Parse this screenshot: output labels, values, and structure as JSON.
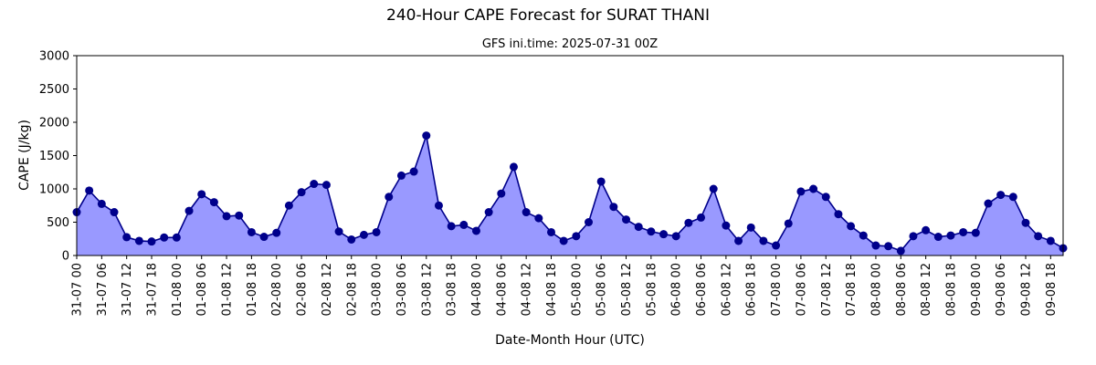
{
  "chart_data": {
    "type": "area",
    "title": "240-Hour CAPE Forecast for SURAT THANI",
    "subtitle": "GFS ini.time: 2025-07-31 00Z",
    "xlabel": "Date-Month Hour (UTC)",
    "ylabel": "CAPE (J/kg)",
    "ylim": [
      0,
      3000
    ],
    "yticks": [
      0,
      500,
      1000,
      1500,
      2000,
      2500,
      3000
    ],
    "grid": false,
    "colors": {
      "line": "#00008b",
      "fill": "#9999ff",
      "marker": "#00008b"
    },
    "x_labels": [
      "31-07 00",
      "31-07 06",
      "31-07 12",
      "31-07 18",
      "01-08 00",
      "01-08 06",
      "01-08 12",
      "01-08 18",
      "02-08 00",
      "02-08 06",
      "02-08 12",
      "02-08 18",
      "03-08 00",
      "03-08 06",
      "03-08 12",
      "03-08 18",
      "04-08 00",
      "04-08 06",
      "04-08 12",
      "04-08 18",
      "05-08 00",
      "05-08 06",
      "05-08 12",
      "05-08 18",
      "06-08 00",
      "06-08 06",
      "06-08 12",
      "06-08 18",
      "07-08 00",
      "07-08 06",
      "07-08 12",
      "07-08 18",
      "08-08 00",
      "08-08 06",
      "08-08 12",
      "08-08 18",
      "09-08 00",
      "09-08 06",
      "09-08 12",
      "09-08 18"
    ],
    "step_hours": 3,
    "values": [
      650,
      975,
      775,
      650,
      275,
      220,
      210,
      270,
      270,
      670,
      920,
      800,
      590,
      600,
      350,
      280,
      340,
      750,
      950,
      1075,
      1060,
      360,
      240,
      310,
      350,
      880,
      1200,
      1260,
      1800,
      750,
      440,
      460,
      370,
      650,
      930,
      1330,
      650,
      560,
      350,
      220,
      290,
      500,
      1110,
      730,
      540,
      430,
      360,
      320,
      290,
      490,
      570,
      1000,
      450,
      220,
      420,
      220,
      150,
      480,
      960,
      1000,
      880,
      620,
      440,
      300,
      150,
      140,
      70,
      290,
      380,
      280,
      300,
      350,
      340,
      780,
      910,
      880,
      490,
      290,
      220,
      110
    ]
  }
}
